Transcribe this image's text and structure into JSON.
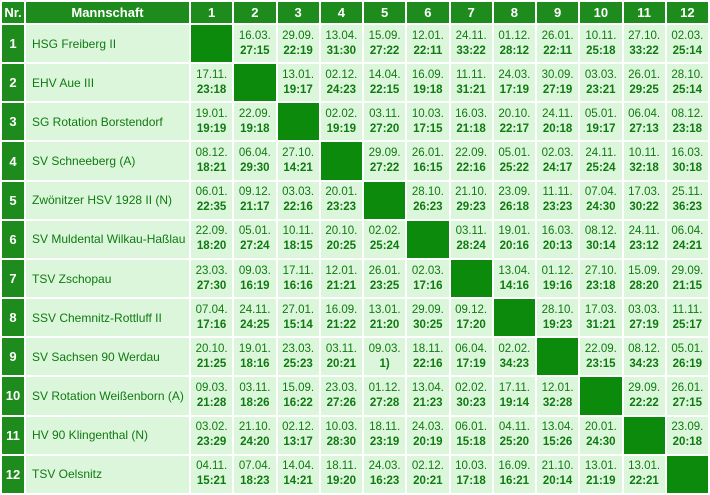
{
  "header": {
    "nr": "Nr.",
    "team": "Mannschaft",
    "columns": [
      "1",
      "2",
      "3",
      "4",
      "5",
      "6",
      "7",
      "8",
      "9",
      "10",
      "11",
      "12"
    ]
  },
  "rows": [
    {
      "nr": "1",
      "team": "HSG Freiberg II",
      "cells": [
        null,
        [
          "16.03.",
          "27:15"
        ],
        [
          "29.09.",
          "22:19"
        ],
        [
          "13.04.",
          "31:30"
        ],
        [
          "15.09.",
          "27:22"
        ],
        [
          "12.01.",
          "22:11"
        ],
        [
          "24.11.",
          "33:22"
        ],
        [
          "01.12.",
          "28:12"
        ],
        [
          "26.01.",
          "22:11"
        ],
        [
          "10.11.",
          "25:18"
        ],
        [
          "27.10.",
          "33:22"
        ],
        [
          "02.03.",
          "25:14"
        ]
      ]
    },
    {
      "nr": "2",
      "team": "EHV Aue III",
      "cells": [
        [
          "17.11.",
          "23:18"
        ],
        null,
        [
          "13.01.",
          "19:17"
        ],
        [
          "02.12.",
          "24:23"
        ],
        [
          "14.04.",
          "22:15"
        ],
        [
          "16.09.",
          "19:18"
        ],
        [
          "11.11.",
          "31:21"
        ],
        [
          "24.03.",
          "17:19"
        ],
        [
          "30.09.",
          "27:19"
        ],
        [
          "03.03.",
          "23:21"
        ],
        [
          "26.01.",
          "29:25"
        ],
        [
          "28.10.",
          "25:14"
        ]
      ]
    },
    {
      "nr": "3",
      "team": "SG Rotation Borstendorf",
      "cells": [
        [
          "19.01.",
          "19:19"
        ],
        [
          "22.09.",
          "19:18"
        ],
        null,
        [
          "02.02.",
          "19:19"
        ],
        [
          "03.11.",
          "27:20"
        ],
        [
          "10.03.",
          "17:15"
        ],
        [
          "16.03.",
          "21:18"
        ],
        [
          "20.10.",
          "22:17"
        ],
        [
          "24.11.",
          "20:18"
        ],
        [
          "05.01.",
          "19:17"
        ],
        [
          "06.04.",
          "27:13"
        ],
        [
          "08.12.",
          "23:18"
        ]
      ]
    },
    {
      "nr": "4",
      "team": "SV Schneeberg (A)",
      "cells": [
        [
          "08.12.",
          "18:21"
        ],
        [
          "06.04.",
          "29:30"
        ],
        [
          "27.10.",
          "14:21"
        ],
        null,
        [
          "29.09.",
          "27:22"
        ],
        [
          "26.01.",
          "16:15"
        ],
        [
          "22.09.",
          "22:16"
        ],
        [
          "05.01.",
          "25:22"
        ],
        [
          "02.03.",
          "24:17"
        ],
        [
          "24.11.",
          "25:24"
        ],
        [
          "10.11.",
          "32:18"
        ],
        [
          "16.03.",
          "30:18"
        ]
      ]
    },
    {
      "nr": "5",
      "team": "Zwönitzer HSV 1928 II (N)",
      "cells": [
        [
          "06.01.",
          "22:35"
        ],
        [
          "09.12.",
          "21:17"
        ],
        [
          "03.03.",
          "22:16"
        ],
        [
          "20.01.",
          "23:23"
        ],
        null,
        [
          "28.10.",
          "26:23"
        ],
        [
          "21.10.",
          "29:23"
        ],
        [
          "23.09.",
          "26:18"
        ],
        [
          "11.11.",
          "23:23"
        ],
        [
          "07.04.",
          "24:30"
        ],
        [
          "17.03.",
          "30:22"
        ],
        [
          "25.11.",
          "36:23"
        ]
      ]
    },
    {
      "nr": "6",
      "team": "SV Muldental Wilkau-Haßlau",
      "cells": [
        [
          "22.09.",
          "18:20"
        ],
        [
          "05.01.",
          "27:24"
        ],
        [
          "10.11.",
          "18:15"
        ],
        [
          "20.10.",
          "20:25"
        ],
        [
          "02.02.",
          "25:24"
        ],
        null,
        [
          "03.11.",
          "28:24"
        ],
        [
          "19.01.",
          "20:16"
        ],
        [
          "16.03.",
          "20:13"
        ],
        [
          "08.12.",
          "30:14"
        ],
        [
          "24.11.",
          "23:12"
        ],
        [
          "06.04.",
          "24:21"
        ]
      ]
    },
    {
      "nr": "7",
      "team": "TSV Zschopau",
      "cells": [
        [
          "23.03.",
          "27:30"
        ],
        [
          "09.03.",
          "16:19"
        ],
        [
          "17.11.",
          "16:16"
        ],
        [
          "12.01.",
          "21:21"
        ],
        [
          "26.01.",
          "23:25"
        ],
        [
          "02.03.",
          "17:16"
        ],
        null,
        [
          "13.04.",
          "14:16"
        ],
        [
          "01.12.",
          "19:16"
        ],
        [
          "27.10.",
          "23:18"
        ],
        [
          "15.09.",
          "28:20"
        ],
        [
          "29.09.",
          "21:15"
        ]
      ]
    },
    {
      "nr": "8",
      "team": "SSV Chemnitz-Rottluff II",
      "cells": [
        [
          "07.04.",
          "17:16"
        ],
        [
          "24.11.",
          "24:25"
        ],
        [
          "27.01.",
          "15:14"
        ],
        [
          "16.09.",
          "21:22"
        ],
        [
          "13.01.",
          "21:20"
        ],
        [
          "29.09.",
          "30:25"
        ],
        [
          "09.12.",
          "17:20"
        ],
        null,
        [
          "28.10.",
          "19:23"
        ],
        [
          "17.03.",
          "31:21"
        ],
        [
          "03.03.",
          "27:19"
        ],
        [
          "11.11.",
          "25:17"
        ]
      ]
    },
    {
      "nr": "9",
      "team": "SV Sachsen 90 Werdau",
      "cells": [
        [
          "20.10.",
          "21:25"
        ],
        [
          "19.01.",
          "18:16"
        ],
        [
          "23.03.",
          "25:23"
        ],
        [
          "03.11.",
          "20:21"
        ],
        [
          "09.03.",
          "1)"
        ],
        [
          "18.11.",
          "22:16"
        ],
        [
          "06.04.",
          "17:19"
        ],
        [
          "02.02.",
          "34:23"
        ],
        null,
        [
          "22.09.",
          "23:15"
        ],
        [
          "08.12.",
          "34:23"
        ],
        [
          "05.01.",
          "26:19"
        ]
      ]
    },
    {
      "nr": "10",
      "team": "SV Rotation Weißenborn (A)",
      "cells": [
        [
          "09.03.",
          "21:28"
        ],
        [
          "03.11.",
          "18:26"
        ],
        [
          "15.09.",
          "16:22"
        ],
        [
          "23.03.",
          "27:26"
        ],
        [
          "01.12.",
          "27:28"
        ],
        [
          "13.04.",
          "21:23"
        ],
        [
          "02.02.",
          "30:23"
        ],
        [
          "17.11.",
          "19:14"
        ],
        [
          "12.01.",
          "32:28"
        ],
        null,
        [
          "29.09.",
          "22:22"
        ],
        [
          "26.01.",
          "27:15"
        ]
      ]
    },
    {
      "nr": "11",
      "team": "HV 90 Klingenthal (N)",
      "cells": [
        [
          "03.02.",
          "23:29"
        ],
        [
          "21.10.",
          "24:20"
        ],
        [
          "02.12.",
          "13:17"
        ],
        [
          "10.03.",
          "28:30"
        ],
        [
          "18.11.",
          "23:19"
        ],
        [
          "24.03.",
          "20:19"
        ],
        [
          "06.01.",
          "15:18"
        ],
        [
          "04.11.",
          "25:20"
        ],
        [
          "13.04.",
          "15:26"
        ],
        [
          "20.01.",
          "24:30"
        ],
        null,
        [
          "23.09.",
          "20:18"
        ]
      ]
    },
    {
      "nr": "12",
      "team": "TSV Oelsnitz",
      "cells": [
        [
          "04.11.",
          "15:21"
        ],
        [
          "07.04.",
          "18:23"
        ],
        [
          "14.04.",
          "14:21"
        ],
        [
          "18.11.",
          "19:20"
        ],
        [
          "24.03.",
          "16:23"
        ],
        [
          "02.12.",
          "20:21"
        ],
        [
          "10.03.",
          "17:18"
        ],
        [
          "16.09.",
          "16:21"
        ],
        [
          "21.10.",
          "20:14"
        ],
        [
          "13.01.",
          "21:19"
        ],
        [
          "22:21",
          "22:21"
        ],
        null
      ]
    }
  ]
}
